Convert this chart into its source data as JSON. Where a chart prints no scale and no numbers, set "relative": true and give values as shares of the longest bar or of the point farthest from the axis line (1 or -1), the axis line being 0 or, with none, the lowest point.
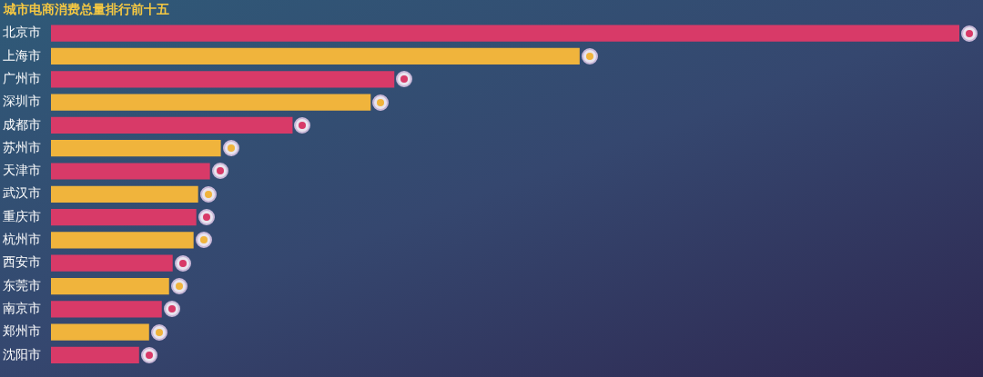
{
  "chart_data": {
    "type": "bar",
    "orientation": "horizontal",
    "relative": true,
    "title": "城市电商消费总量排行前十五",
    "categories": [
      "北京市",
      "上海市",
      "广州市",
      "深圳市",
      "成都市",
      "苏州市",
      "天津市",
      "武汉市",
      "重庆市",
      "杭州市",
      "西安市",
      "东莞市",
      "南京市",
      "郑州市",
      "沈阳市"
    ],
    "values": [
      1,
      0.582,
      0.378,
      0.352,
      0.266,
      0.187,
      0.175,
      0.162,
      0.16,
      0.157,
      0.134,
      0.13,
      0.122,
      0.108,
      0.097
    ],
    "colors": [
      "#d83a68",
      "#f0b43c",
      "#d83a68",
      "#f0b43c",
      "#d83a68",
      "#f0b43c",
      "#d83a68",
      "#f0b43c",
      "#d83a68",
      "#f0b43c",
      "#d83a68",
      "#f0b43c",
      "#d83a68",
      "#f0b43c",
      "#d83a68"
    ],
    "legend": false
  }
}
